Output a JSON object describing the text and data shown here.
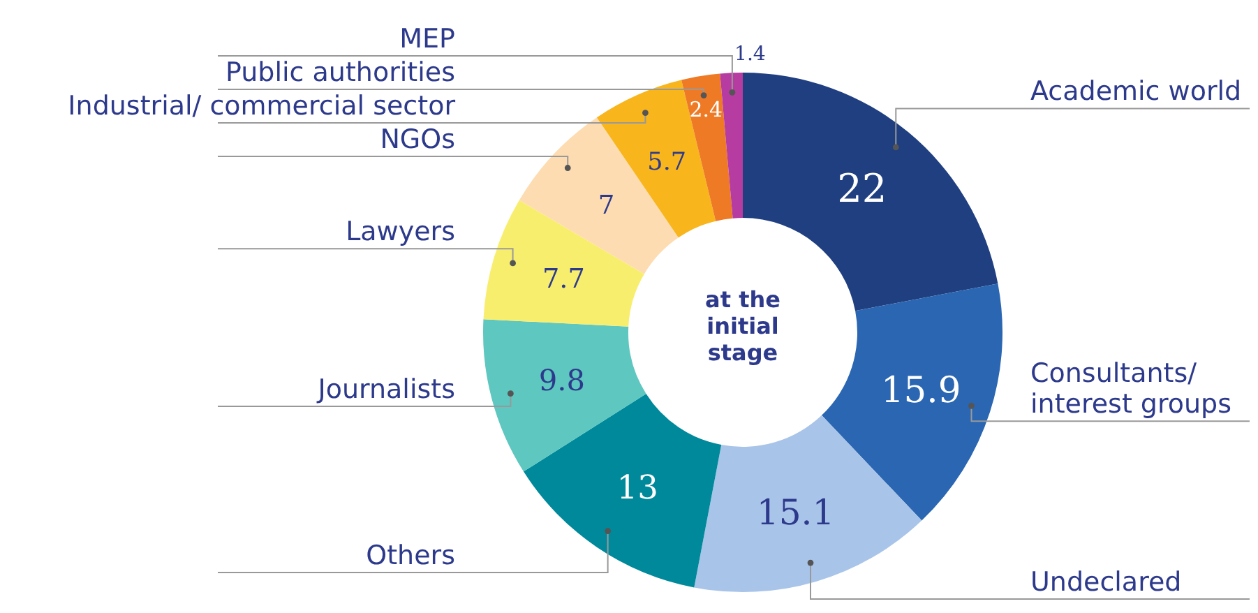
{
  "chart_data": {
    "type": "donut",
    "title": "at the initial stage",
    "categories": [
      "Academic world",
      "Consultants/ interest groups",
      "Undeclared",
      "Others",
      "Journalists",
      "Lawyers",
      "NGOs",
      "Industrial/ commercial sector",
      "Public authorities",
      "MEP"
    ],
    "values": [
      22,
      15.9,
      15.1,
      13,
      9.8,
      7.7,
      7,
      5.7,
      2.4,
      1.4
    ],
    "colors": [
      "#1f3f80",
      "#2a66b1",
      "#a9c4e9",
      "#00899b",
      "#5dc7c0",
      "#f8ee6e",
      "#fddcb2",
      "#f8b51c",
      "#ee7a26",
      "#b63ca1"
    ],
    "data_labels": true
  }
}
